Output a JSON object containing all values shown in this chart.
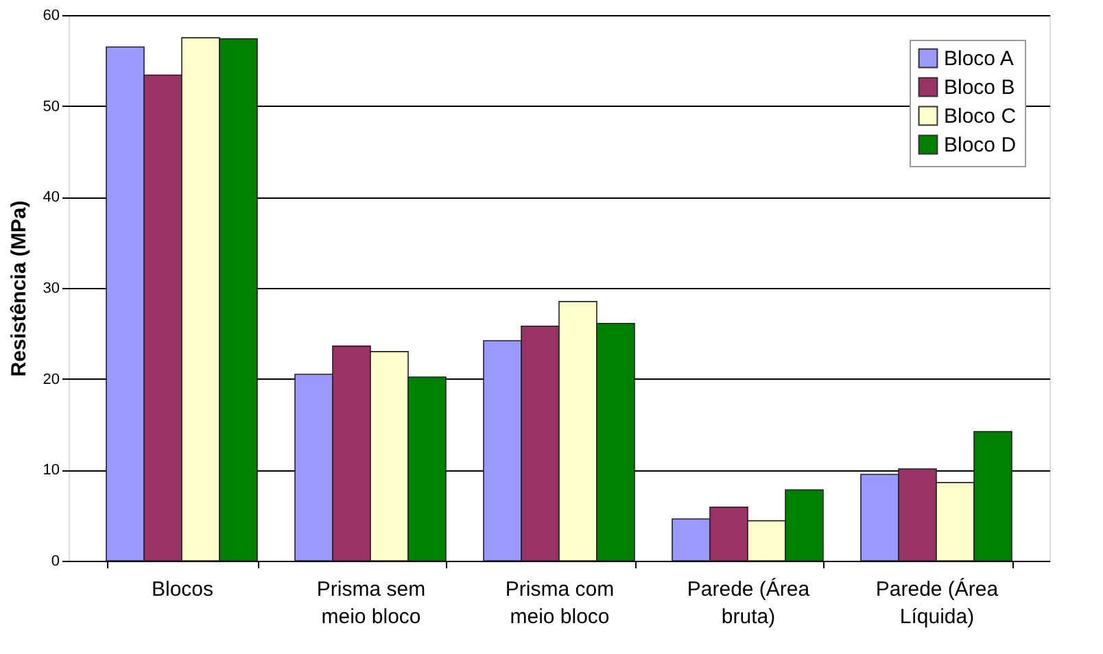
{
  "chart_data": {
    "type": "bar",
    "ylabel": "Resistência (MPa)",
    "categories": [
      "Blocos",
      "Prisma sem meio bloco",
      "Prisma com meio bloco",
      "Parede (Área bruta)",
      "Parede (Área Líquida)"
    ],
    "series": [
      {
        "name": "Bloco A",
        "color": "#9999ff",
        "values": [
          56.5,
          20.5,
          24.2,
          4.6,
          9.5
        ]
      },
      {
        "name": "Bloco B",
        "color": "#993366",
        "values": [
          53.4,
          23.6,
          25.8,
          5.9,
          10.1
        ]
      },
      {
        "name": "Bloco C",
        "color": "#ffffcc",
        "values": [
          57.5,
          23.0,
          28.5,
          4.4,
          8.6
        ]
      },
      {
        "name": "Bloco D",
        "color": "#008000",
        "values": [
          57.4,
          20.2,
          26.1,
          7.8,
          14.2
        ]
      }
    ],
    "ylim": [
      0,
      60
    ],
    "yticks": [
      0,
      10,
      20,
      30,
      40,
      50,
      60
    ],
    "grid": "y",
    "legend": "top right"
  }
}
